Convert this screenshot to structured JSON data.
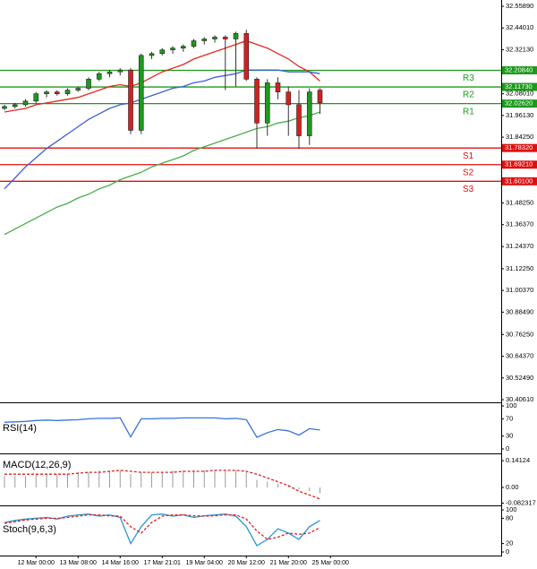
{
  "chart_data": [
    {
      "type": "candlestick",
      "categories": [
        null,
        null,
        null,
        "12 Mar 00:00",
        null,
        null,
        null,
        "13 Mar 08:00",
        null,
        null,
        null,
        "14 Mar 16:00",
        null,
        null,
        null,
        "17 Mar 21:01",
        null,
        null,
        null,
        "19 Mar 04:00",
        null,
        null,
        null,
        "20 Mar 12:00",
        null,
        null,
        null,
        "21 Mar 20:00",
        null,
        null,
        null,
        "25 Mar 00:00"
      ],
      "open": [
        32.0,
        32.01,
        32.02,
        32.04,
        32.08,
        32.09,
        32.08,
        32.1,
        32.11,
        32.16,
        32.19,
        32.2,
        32.21,
        31.88,
        32.29,
        32.3,
        32.32,
        32.33,
        32.34,
        32.37,
        32.38,
        32.39,
        32.38,
        32.41,
        32.16,
        31.92,
        32.14,
        32.09,
        32.02,
        31.85,
        32.1,
        null
      ],
      "high": [
        32.02,
        32.03,
        32.05,
        32.09,
        32.1,
        32.1,
        32.11,
        32.12,
        32.17,
        32.2,
        32.21,
        32.22,
        32.22,
        32.3,
        32.31,
        32.33,
        32.34,
        32.35,
        32.38,
        32.39,
        32.4,
        32.4,
        32.42,
        32.43,
        32.17,
        32.16,
        32.17,
        32.12,
        32.1,
        32.11,
        32.11,
        null
      ],
      "low": [
        31.99,
        32.0,
        32.01,
        32.03,
        32.06,
        32.07,
        32.07,
        32.09,
        32.1,
        32.15,
        32.17,
        32.18,
        31.86,
        31.86,
        32.27,
        32.29,
        32.3,
        32.31,
        32.33,
        32.35,
        32.36,
        32.1,
        32.12,
        32.15,
        31.78,
        31.85,
        32.05,
        31.85,
        31.78,
        31.8,
        31.97,
        null
      ],
      "close": [
        32.01,
        32.02,
        32.04,
        32.08,
        32.09,
        32.08,
        32.1,
        32.11,
        32.16,
        32.19,
        32.2,
        32.21,
        31.88,
        32.29,
        32.3,
        32.32,
        32.33,
        32.34,
        32.37,
        32.38,
        32.39,
        32.38,
        32.41,
        32.16,
        31.92,
        32.14,
        32.09,
        32.02,
        31.85,
        32.09,
        32.03,
        null
      ],
      "up_color": "#1c9a1c",
      "down_color": "#d42020",
      "lines": [
        {
          "color": "#e02a1f",
          "values": [
            31.98,
            31.99,
            32.0,
            32.02,
            32.03,
            32.04,
            32.05,
            32.06,
            32.08,
            32.1,
            32.12,
            32.13,
            32.12,
            32.14,
            32.17,
            32.2,
            32.22,
            32.24,
            32.27,
            32.29,
            32.31,
            32.33,
            32.35,
            32.37,
            32.35,
            32.33,
            32.3,
            32.27,
            32.23,
            32.2,
            32.15,
            null
          ]
        },
        {
          "color": "#3d5fd6",
          "values": [
            31.56,
            31.62,
            31.68,
            31.73,
            31.78,
            31.82,
            31.86,
            31.9,
            31.94,
            31.97,
            32.0,
            32.02,
            32.03,
            32.05,
            32.07,
            32.09,
            32.11,
            32.12,
            32.14,
            32.15,
            32.17,
            32.18,
            32.19,
            32.21,
            32.21,
            32.21,
            32.21,
            32.2,
            32.2,
            32.2,
            32.19,
            null
          ]
        },
        {
          "color": "#4aad4a",
          "values": [
            31.31,
            31.34,
            31.37,
            31.4,
            31.43,
            31.46,
            31.48,
            31.51,
            31.53,
            31.56,
            31.58,
            31.61,
            31.63,
            31.65,
            31.68,
            31.7,
            31.72,
            31.74,
            31.77,
            31.79,
            31.81,
            31.83,
            31.85,
            31.87,
            31.89,
            31.9,
            31.92,
            31.93,
            31.95,
            31.96,
            31.98,
            null
          ]
        }
      ],
      "levels": [
        {
          "name": "R3",
          "value": 32.2084,
          "label": "32.20840",
          "color": "#1c9a1c"
        },
        {
          "name": "R2",
          "value": 32.1173,
          "label": "32.11730",
          "color": "#1c9a1c"
        },
        {
          "name": "R1",
          "value": 32.0262,
          "label": "32.02620",
          "color": "#1c9a1c"
        },
        {
          "name": "S1",
          "value": 31.7832,
          "label": "31.78320",
          "color": "#e01010"
        },
        {
          "name": "S2",
          "value": 31.6921,
          "label": "31.69210",
          "color": "#e01010"
        },
        {
          "name": "S3",
          "value": 31.601,
          "label": "31.60100",
          "color": "#e01010"
        }
      ],
      "ylim": [
        30.4061,
        32.5589
      ],
      "yticks": [
        {
          "value": 32.5589,
          "label": "32.55890"
        },
        {
          "value": 32.4401,
          "label": "32.44010"
        },
        {
          "value": 32.3213,
          "label": "32.32130"
        },
        {
          "value": 32.0801,
          "label": "32.08010"
        },
        {
          "value": 31.9613,
          "label": "31.96130"
        },
        {
          "value": 31.8425,
          "label": "31.84250"
        },
        {
          "value": 31.4825,
          "label": "31.48250"
        },
        {
          "value": 31.3637,
          "label": "31.36370"
        },
        {
          "value": 31.2437,
          "label": "31.24370"
        },
        {
          "value": 31.1225,
          "label": "31.12250"
        },
        {
          "value": 31.0037,
          "label": "31.00370"
        },
        {
          "value": 30.8849,
          "label": "30.88490"
        },
        {
          "value": 30.7625,
          "label": "30.76250"
        },
        {
          "value": 30.6437,
          "label": "30.64370"
        },
        {
          "value": 30.5249,
          "label": "30.52490"
        },
        {
          "value": 30.4061,
          "label": "30.40610"
        }
      ]
    },
    {
      "type": "line",
      "title": "RSI(14)",
      "color": "#3b73d8",
      "values": [
        62,
        63,
        64,
        66,
        67,
        66,
        67,
        68,
        70,
        71,
        71,
        72,
        28,
        70,
        70,
        71,
        71,
        72,
        72,
        72,
        72,
        70,
        71,
        68,
        27,
        38,
        45,
        42,
        32,
        47,
        44,
        null
      ],
      "ylim": [
        0,
        100
      ],
      "yticks": [
        100,
        70,
        30,
        0
      ]
    },
    {
      "type": "macd",
      "title": "MACD(12,26,9)",
      "color": "#9a9a9a",
      "signal_color": "#e02020",
      "values": [
        0.06,
        0.06,
        0.06,
        0.07,
        0.07,
        0.07,
        0.07,
        0.08,
        0.08,
        0.09,
        0.09,
        0.09,
        0.07,
        0.08,
        0.08,
        0.08,
        0.09,
        0.09,
        0.09,
        0.09,
        0.09,
        0.09,
        0.09,
        0.08,
        0.04,
        0.03,
        0.02,
        0.01,
        -0.01,
        -0.02,
        -0.03,
        null
      ],
      "signal": [
        0.07,
        0.07,
        0.07,
        0.07,
        0.07,
        0.07,
        0.07,
        0.075,
        0.08,
        0.08,
        0.085,
        0.09,
        0.085,
        0.08,
        0.08,
        0.08,
        0.08,
        0.085,
        0.085,
        0.085,
        0.09,
        0.09,
        0.09,
        0.085,
        0.07,
        0.05,
        0.03,
        0.01,
        -0.02,
        -0.04,
        -0.06,
        null
      ],
      "ylim": [
        -0.085,
        0.17
      ],
      "yticks": [
        0.14124,
        {
          "value": 0,
          "label": "0.00"
        },
        -0.082317
      ]
    },
    {
      "type": "stoch",
      "title": "Stoch(9,6,3)",
      "color": "#2a95d0",
      "signal_color": "#e02020",
      "values": [
        70,
        75,
        78,
        80,
        82,
        78,
        85,
        88,
        90,
        85,
        88,
        82,
        20,
        60,
        88,
        90,
        85,
        88,
        82,
        86,
        88,
        90,
        85,
        60,
        15,
        30,
        55,
        45,
        30,
        60,
        75,
        null
      ],
      "signal": [
        68,
        72,
        76,
        78,
        80,
        80,
        82,
        85,
        88,
        88,
        86,
        85,
        60,
        45,
        70,
        85,
        88,
        88,
        86,
        85,
        86,
        88,
        88,
        78,
        50,
        30,
        35,
        45,
        42,
        45,
        58,
        null
      ],
      "ylim": [
        0,
        100
      ],
      "yticks": [
        100,
        80,
        20,
        0
      ]
    }
  ]
}
